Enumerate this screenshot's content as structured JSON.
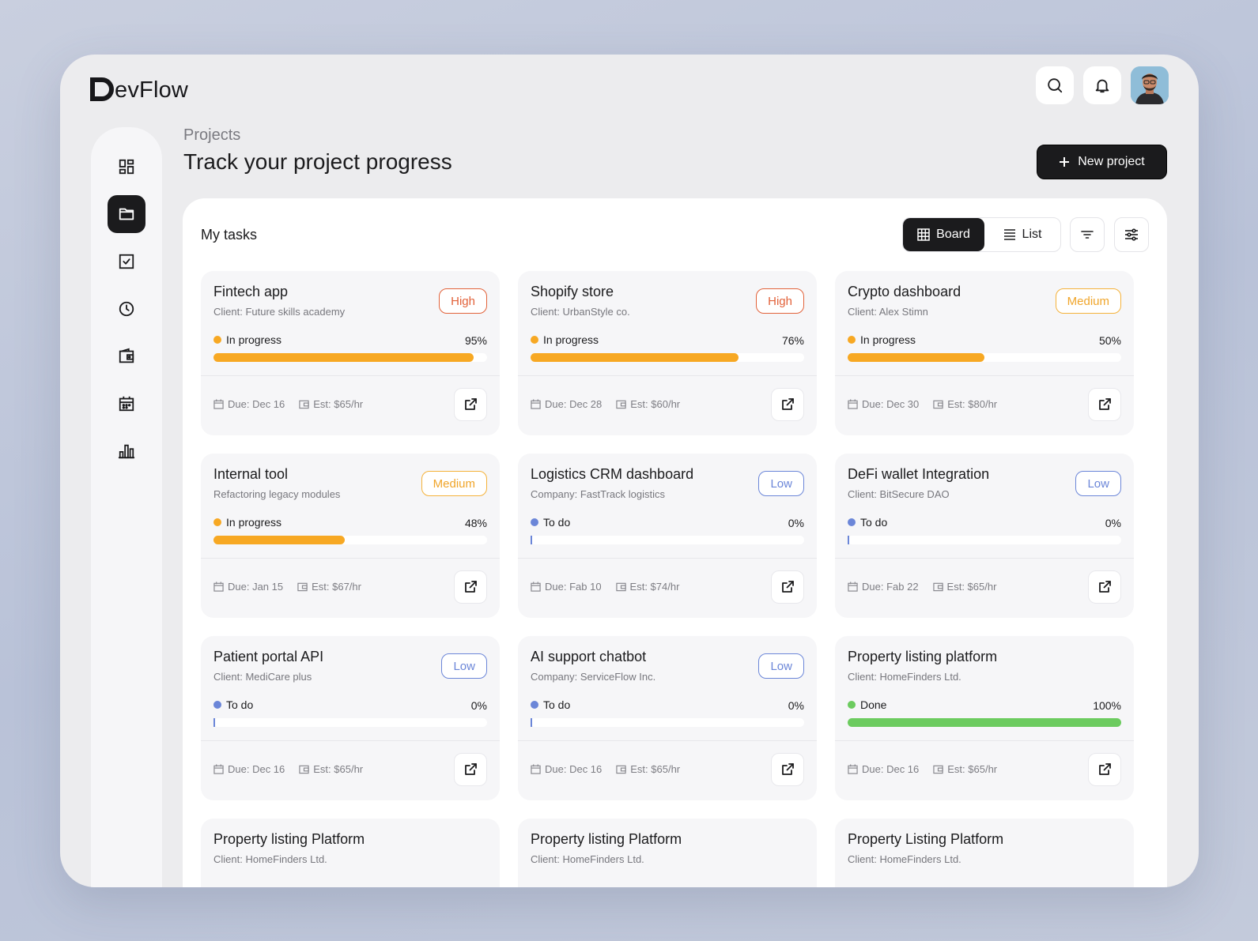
{
  "brand": {
    "logo_letter": "D",
    "logo_rest": "evFlow"
  },
  "header": {
    "section": "Projects",
    "title": "Track your project progress",
    "new_button": "New project"
  },
  "panel": {
    "title": "My tasks",
    "view_board": "Board",
    "view_list": "List",
    "active_view": "Board"
  },
  "sidebar": {
    "items": [
      {
        "name": "dashboard",
        "icon": "dashboard-icon",
        "active": false
      },
      {
        "name": "projects",
        "icon": "folder-icon",
        "active": true
      },
      {
        "name": "tasks",
        "icon": "checkbox-icon",
        "active": false
      },
      {
        "name": "time",
        "icon": "clock-icon",
        "active": false
      },
      {
        "name": "wallet",
        "icon": "wallet-icon",
        "active": false
      },
      {
        "name": "calendar",
        "icon": "calendar-icon",
        "active": false
      },
      {
        "name": "reports",
        "icon": "bar-chart-icon",
        "active": false
      }
    ]
  },
  "colors": {
    "high": "#e2623a",
    "medium": "#f5b23a",
    "low": "#6b86d8",
    "in_progress": "#f7a823",
    "todo": "#6b86d8",
    "done": "#6ccb5f"
  },
  "projects": [
    {
      "title": "Fintech app",
      "client": "Client: Future skills academy",
      "priority": "High",
      "priority_key": "high",
      "status": "In progress",
      "status_key": "in_progress",
      "progress_label": "95%",
      "progress": 95,
      "due": "Due: Dec 16",
      "est": "Est: $65/hr"
    },
    {
      "title": "Shopify store",
      "client": "Client: UrbanStyle co.",
      "priority": "High",
      "priority_key": "high",
      "status": "In progress",
      "status_key": "in_progress",
      "progress_label": "76%",
      "progress": 76,
      "due": "Due: Dec 28",
      "est": "Est: $60/hr"
    },
    {
      "title": "Crypto dashboard",
      "client": "Client: Alex Stimn",
      "priority": "Medium",
      "priority_key": "medium",
      "status": "In progress",
      "status_key": "in_progress",
      "progress_label": "50%",
      "progress": 50,
      "due": "Due: Dec 30",
      "est": "Est: $80/hr"
    },
    {
      "title": "Internal tool",
      "client": "Refactoring legacy modules",
      "priority": "Medium",
      "priority_key": "medium",
      "status": "In progress",
      "status_key": "in_progress",
      "progress_label": "48%",
      "progress": 48,
      "due": "Due: Jan 15",
      "est": "Est: $67/hr"
    },
    {
      "title": "Logistics CRM dashboard",
      "client": "Company: FastTrack logistics",
      "priority": "Low",
      "priority_key": "low",
      "status": "To do",
      "status_key": "todo",
      "progress_label": "0%",
      "progress": 0,
      "due": "Due: Fab 10",
      "est": "Est: $74/hr"
    },
    {
      "title": "DeFi wallet Integration",
      "client": "Client: BitSecure DAO",
      "priority": "Low",
      "priority_key": "low",
      "status": "To do",
      "status_key": "todo",
      "progress_label": "0%",
      "progress": 0,
      "due": "Due: Fab 22",
      "est": "Est: $65/hr"
    },
    {
      "title": "Patient portal API",
      "client": "Client: MediCare plus",
      "priority": "Low",
      "priority_key": "low",
      "status": "To do",
      "status_key": "todo",
      "progress_label": "0%",
      "progress": 0,
      "due": "Due: Dec 16",
      "est": "Est: $65/hr"
    },
    {
      "title": "AI support chatbot",
      "client": "Company: ServiceFlow Inc.",
      "priority": "Low",
      "priority_key": "low",
      "status": "To do",
      "status_key": "todo",
      "progress_label": "0%",
      "progress": 0,
      "due": "Due: Dec 16",
      "est": "Est: $65/hr"
    },
    {
      "title": "Property listing platform",
      "client": "Client: HomeFinders Ltd.",
      "priority": "",
      "priority_key": "",
      "status": "Done",
      "status_key": "done",
      "progress_label": "100%",
      "progress": 100,
      "due": "Due: Dec 16",
      "est": "Est: $65/hr"
    },
    {
      "title": "Property listing Platform",
      "client": "Client: HomeFinders Ltd."
    },
    {
      "title": "Property listing Platform",
      "client": "Client: HomeFinders Ltd."
    },
    {
      "title": "Property Listing Platform",
      "client": "Client: HomeFinders Ltd."
    }
  ]
}
